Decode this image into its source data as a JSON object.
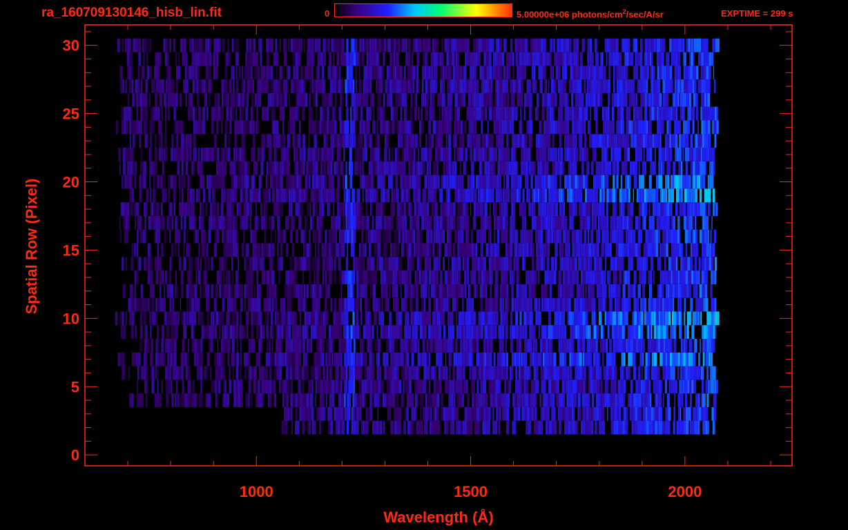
{
  "header": {
    "title": "ra_160709130146_hisb_lin.fit",
    "colorbar_min": "0",
    "colorbar_max": "5.00000e+06 photons/cm",
    "colorbar_max_sup": "2",
    "colorbar_max_tail": "/sec/A/sr",
    "exptime": "EXPTIME = 299 s"
  },
  "colors": {
    "axis": "#ff2a12",
    "background": "#000000"
  },
  "chart_data": {
    "type": "heatmap",
    "title": "ra_160709130146_hisb_lin.fit",
    "xlabel": "Wavelength (Å)",
    "ylabel": "Spatial Row (Pixel)",
    "xlim": [
      600,
      2250
    ],
    "ylim": [
      -0.8,
      31.5
    ],
    "x_ticks": [
      1000,
      1500,
      2000
    ],
    "y_ticks": [
      0,
      5,
      10,
      15,
      20,
      25,
      30
    ],
    "colorbar": {
      "min": 0,
      "max": 5000000,
      "units": "photons/cm^2/sec/A/sr",
      "colormap": "rainbow"
    },
    "data_extent": {
      "wavelength": [
        670,
        2080
      ],
      "rows": [
        2,
        30
      ]
    },
    "bright_rows": [
      7,
      9,
      10,
      19,
      20
    ],
    "emission_features": [
      1216
    ],
    "intensity_rises_toward_red_end": true
  }
}
